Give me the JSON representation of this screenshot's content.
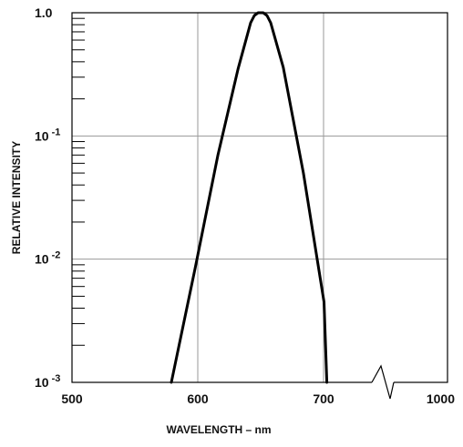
{
  "chart_data": {
    "type": "line",
    "xlabel": "WAVELENGTH – nm",
    "ylabel": "RELATIVE INTENSITY",
    "xlim": [
      500,
      1000
    ],
    "ylim": [
      0.001,
      1.0
    ],
    "yscale": "log",
    "grid": true,
    "x_axis_break": {
      "after": 700,
      "before": 1000
    },
    "x_ticks": [
      {
        "value": 500,
        "label": "500"
      },
      {
        "value": 600,
        "label": "600"
      },
      {
        "value": 700,
        "label": "700"
      },
      {
        "value": 1000,
        "label": "1000"
      }
    ],
    "y_ticks": [
      {
        "value": 1.0,
        "label": "1.0",
        "base": "1.0",
        "exp": ""
      },
      {
        "value": 0.1,
        "label": "10 -1",
        "base": "10",
        "exp": "-1"
      },
      {
        "value": 0.01,
        "label": "10 -2",
        "base": "10",
        "exp": "-2"
      },
      {
        "value": 0.001,
        "label": "10 -3",
        "base": "10",
        "exp": "-3"
      }
    ],
    "series": [
      {
        "x": [
          579,
          598,
          616,
          632,
          642,
          645,
          648,
          650,
          652,
          655,
          658,
          668,
          684,
          701,
          708
        ],
        "y": [
          0.001,
          0.0085,
          0.07,
          0.35,
          0.83,
          0.95,
          1.0,
          1.0,
          1.0,
          0.95,
          0.83,
          0.36,
          0.05,
          0.0045,
          0.001
        ]
      }
    ]
  }
}
